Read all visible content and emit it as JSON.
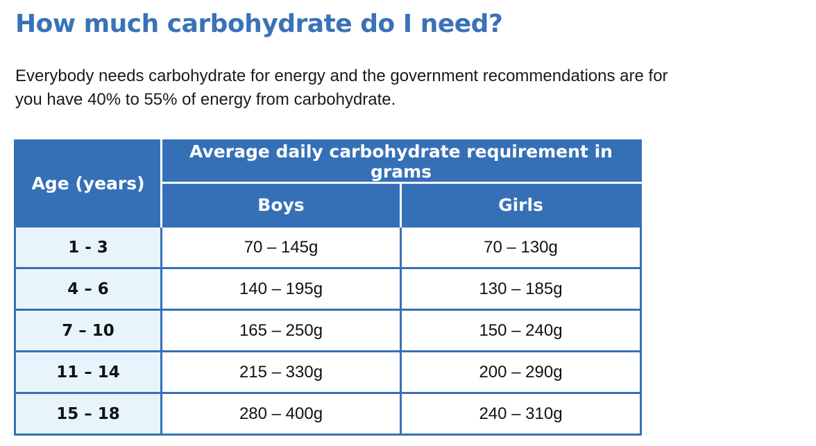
{
  "page": {
    "title": "How much carbohydrate do I need?",
    "intro_lines": [
      "Everybody needs carbohydrate for energy and the government recommendations are for",
      "you have 40% to 55% of energy from carbohydrate."
    ]
  },
  "table": {
    "header": {
      "age": "Age (years)",
      "group": "Average daily carbohydrate requirement in grams",
      "boys": "Boys",
      "girls": "Girls"
    },
    "rows": [
      {
        "age": "1 - 3",
        "boys": "70 – 145g",
        "girls": "70 – 130g"
      },
      {
        "age": "4 – 6",
        "boys": "140 – 195g",
        "girls": "130 – 185g"
      },
      {
        "age": "7 – 10",
        "boys": "165 – 250g",
        "girls": "150 – 240g"
      },
      {
        "age": "11 – 14",
        "boys": "215 – 330g",
        "girls": "200 – 290g"
      },
      {
        "age": "15 – 18",
        "boys": "280 – 400g",
        "girls": "240 – 310g"
      }
    ]
  },
  "colors": {
    "heading": "#3a72b6",
    "table_header_bg": "#3570b7",
    "age_column_bg": "#e8f4fc",
    "border": "#3570b7"
  }
}
